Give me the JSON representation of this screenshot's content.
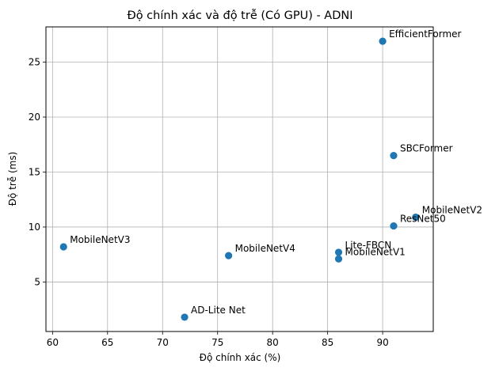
{
  "chart_data": {
    "type": "scatter",
    "title": "Độ chính xác và độ trễ (Có GPU) - ADNI",
    "xlabel": "Độ chính xác (%)",
    "ylabel": "Độ trễ (ms)",
    "xlim": [
      59.4,
      94.6
    ],
    "ylim": [
      0.5,
      28.2
    ],
    "xticks": [
      60,
      65,
      70,
      75,
      80,
      85,
      90
    ],
    "yticks": [
      5,
      10,
      15,
      20,
      25
    ],
    "grid": true,
    "marker_color": "#1f77b4",
    "points": [
      {
        "label": "EfficientFormer",
        "x": 90,
        "y": 26.9
      },
      {
        "label": "SBCFormer",
        "x": 91,
        "y": 16.5
      },
      {
        "label": "MobileNetV2",
        "x": 93,
        "y": 10.9
      },
      {
        "label": "ResNet50",
        "x": 91,
        "y": 10.1
      },
      {
        "label": "MobileNetV3",
        "x": 61,
        "y": 8.2
      },
      {
        "label": "MobileNetV4",
        "x": 76,
        "y": 7.4
      },
      {
        "label": "Lite-FBCN",
        "x": 86,
        "y": 7.7
      },
      {
        "label": "MobileNetV1",
        "x": 86,
        "y": 7.1
      },
      {
        "label": "AD-Lite Net",
        "x": 72,
        "y": 1.8
      }
    ]
  }
}
